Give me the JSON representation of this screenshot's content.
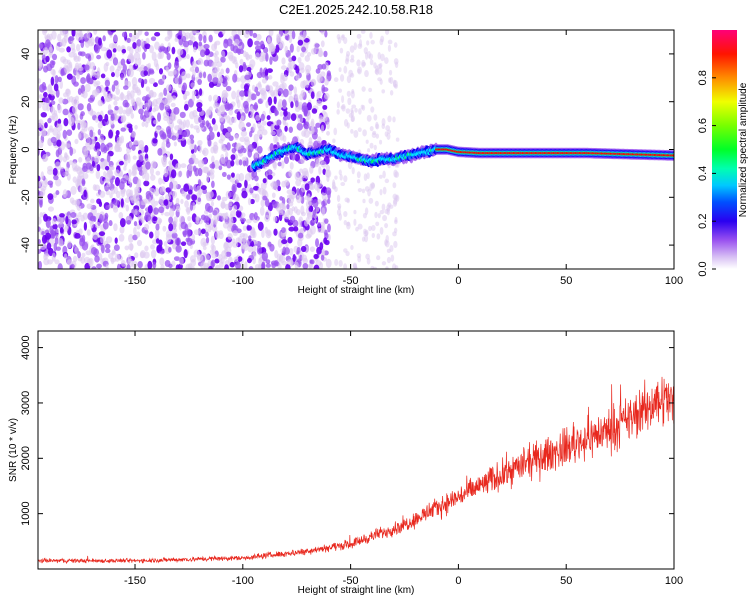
{
  "title": "C2E1.2025.242.10.58.R18",
  "chart_data": [
    {
      "type": "heatmap",
      "xlabel": "Height of straight line (km)",
      "ylabel": "Frequency (Hz)",
      "xlim": [
        -195,
        100
      ],
      "ylim": [
        -50,
        50
      ],
      "xticks": [
        -150,
        -100,
        -50,
        0,
        50,
        100
      ],
      "yticks": [
        -40,
        -20,
        0,
        20,
        40
      ],
      "trace": {
        "x": [
          -95,
          -90,
          -85,
          -80,
          -75,
          -70,
          -65,
          -60,
          -55,
          -50,
          -45,
          -40,
          -35,
          -30,
          -25,
          -20,
          -15,
          -10,
          -5,
          0,
          10,
          20,
          40,
          60,
          80,
          100
        ],
        "y": [
          -7,
          -5,
          -2,
          0,
          1,
          -2,
          -1,
          0,
          -2,
          -3,
          -4,
          -5,
          -4,
          -4,
          -3,
          -2,
          -1,
          0,
          0,
          -1,
          -1.5,
          -1.5,
          -1.5,
          -1.5,
          -2,
          -2.5
        ]
      },
      "colorbar": {
        "label": "Normalized spectral amplitude",
        "ticks": [
          "0.0",
          "0.2",
          "0.4",
          "0.6",
          "0.8"
        ],
        "range": [
          0,
          1
        ]
      }
    },
    {
      "type": "line",
      "xlabel": "Height of straight line (km)",
      "ylabel": "SNR (10 * v/v)",
      "xlim": [
        -195,
        100
      ],
      "ylim": [
        0,
        4300
      ],
      "xticks": [
        -150,
        -100,
        -50,
        0,
        50,
        100
      ],
      "yticks": [
        1000,
        2000,
        3000,
        4000
      ],
      "trend": {
        "x": [
          -195,
          -150,
          -100,
          -75,
          -50,
          -25,
          0,
          25,
          50,
          75,
          95,
          100
        ],
        "y": [
          150,
          150,
          200,
          300,
          450,
          800,
          1300,
          1800,
          2200,
          2600,
          3100,
          3000
        ]
      },
      "color": "#e8281e"
    }
  ],
  "colors": {
    "colormap": [
      "#dcc8f0",
      "#9a52f0",
      "#6a00f0",
      "#0a00f5",
      "#0078ff",
      "#00e6ff",
      "#00ff5a",
      "#78ff00",
      "#ffff00",
      "#ff9600",
      "#ff0000",
      "#ff0078"
    ]
  }
}
